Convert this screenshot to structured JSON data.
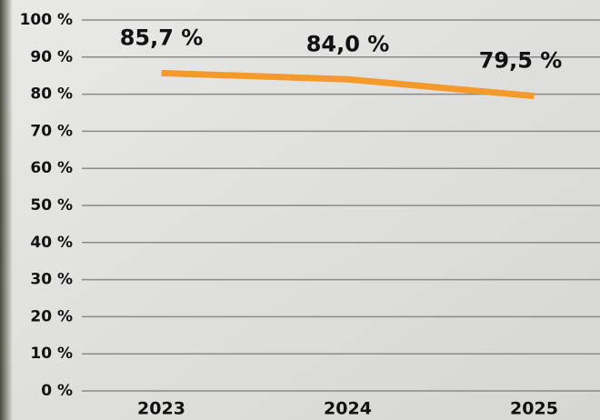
{
  "chart_data": {
    "type": "line",
    "categories": [
      "2023",
      "2024",
      "2025"
    ],
    "values": [
      85.7,
      84.0,
      79.5
    ],
    "value_labels": [
      "85,7 %",
      "84,0 %",
      "79,5 %"
    ],
    "color": "#f39a2b",
    "ylim": [
      0,
      100
    ],
    "yticks": [
      {
        "value": 0,
        "label": "0 %"
      },
      {
        "value": 10,
        "label": "10 %"
      },
      {
        "value": 20,
        "label": "20 %"
      },
      {
        "value": 30,
        "label": "30 %"
      },
      {
        "value": 40,
        "label": "40 %"
      },
      {
        "value": 50,
        "label": "50 %"
      },
      {
        "value": 60,
        "label": "60 %"
      },
      {
        "value": 70,
        "label": "70 %"
      },
      {
        "value": 80,
        "label": "80 %"
      },
      {
        "value": 90,
        "label": "90 %"
      },
      {
        "value": 100,
        "label": "100 %"
      }
    ],
    "grid": true
  }
}
